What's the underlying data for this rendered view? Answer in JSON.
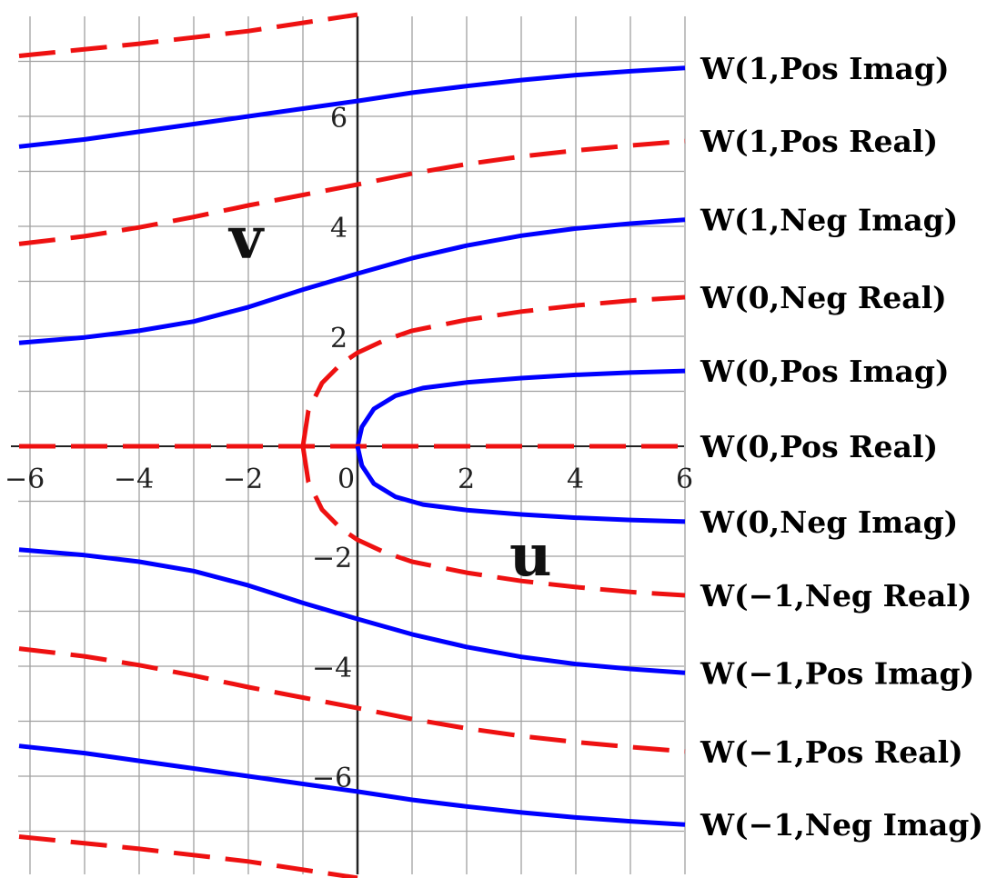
{
  "chart_data": {
    "type": "line",
    "xlabel": "u",
    "ylabel": "v",
    "xlim": [
      -6.2,
      6
    ],
    "ylim": [
      -7.8,
      7.9
    ],
    "grid": true,
    "x_ticks": [
      -6,
      -4,
      -2,
      0,
      2,
      4,
      6
    ],
    "x_tick_labels": [
      "−6",
      "−4",
      "−2",
      "0",
      "2",
      "4",
      "6"
    ],
    "y_ticks": [
      -6,
      -4,
      -2,
      2,
      4,
      6
    ],
    "y_tick_labels": [
      "−6",
      "−4",
      "−2",
      "2",
      "4",
      "6"
    ],
    "colors": {
      "imag": "#0000ff",
      "real": "#ee1111",
      "grid": "#a0a0a0",
      "axis": "#222222"
    },
    "series": [
      {
        "name": "W(1,Pos Imag)",
        "color": "#0000ff",
        "dash": "solid",
        "points": [
          [
            -6.2,
            5.45
          ],
          [
            -5,
            5.58
          ],
          [
            -4,
            5.72
          ],
          [
            -3,
            5.86
          ],
          [
            -2,
            6.0
          ],
          [
            -1,
            6.14
          ],
          [
            0,
            6.28
          ],
          [
            1,
            6.43
          ],
          [
            2,
            6.55
          ],
          [
            3,
            6.66
          ],
          [
            4,
            6.75
          ],
          [
            5,
            6.82
          ],
          [
            6,
            6.88
          ]
        ]
      },
      {
        "name": "W(1,Pos Real)",
        "color": "#ee1111",
        "dash": "dashed",
        "points": [
          [
            -6.2,
            3.68
          ],
          [
            -5,
            3.82
          ],
          [
            -4,
            3.98
          ],
          [
            -3,
            4.17
          ],
          [
            -2,
            4.38
          ],
          [
            -1,
            4.57
          ],
          [
            0,
            4.76
          ],
          [
            1,
            4.96
          ],
          [
            2,
            5.13
          ],
          [
            3,
            5.27
          ],
          [
            4,
            5.38
          ],
          [
            5,
            5.47
          ],
          [
            6,
            5.55
          ]
        ]
      },
      {
        "name": "W(1,Neg Imag)",
        "color": "#0000ff",
        "dash": "solid",
        "points": [
          [
            -6.2,
            1.88
          ],
          [
            -5,
            1.98
          ],
          [
            -4,
            2.1
          ],
          [
            -3,
            2.27
          ],
          [
            -2,
            2.53
          ],
          [
            -1,
            2.85
          ],
          [
            0,
            3.14
          ],
          [
            1,
            3.42
          ],
          [
            2,
            3.65
          ],
          [
            3,
            3.83
          ],
          [
            4,
            3.96
          ],
          [
            5,
            4.05
          ],
          [
            6,
            4.12
          ]
        ]
      },
      {
        "name": "W(0,Neg Real)",
        "color": "#ee1111",
        "dash": "dashed",
        "points": [
          [
            -1,
            0
          ],
          [
            -0.9,
            0.65
          ],
          [
            -0.65,
            1.15
          ],
          [
            -0.3,
            1.5
          ],
          [
            0,
            1.7
          ],
          [
            0.5,
            1.93
          ],
          [
            1,
            2.1
          ],
          [
            2,
            2.3
          ],
          [
            3,
            2.45
          ],
          [
            4,
            2.56
          ],
          [
            5,
            2.65
          ],
          [
            6,
            2.71
          ]
        ]
      },
      {
        "name": "W(0,Pos Imag)",
        "color": "#0000ff",
        "dash": "solid",
        "points": [
          [
            0,
            0
          ],
          [
            0.08,
            0.35
          ],
          [
            0.3,
            0.68
          ],
          [
            0.7,
            0.92
          ],
          [
            1.2,
            1.06
          ],
          [
            2,
            1.16
          ],
          [
            3,
            1.24
          ],
          [
            4,
            1.3
          ],
          [
            5,
            1.34
          ],
          [
            6,
            1.37
          ]
        ]
      },
      {
        "name": "W(0,Pos Real)",
        "color": "#ee1111",
        "dash": "dashed",
        "points": [
          [
            -6.2,
            0
          ],
          [
            6,
            0
          ]
        ]
      },
      {
        "name": "W(0,Neg Imag)",
        "color": "#0000ff",
        "dash": "solid",
        "points": [
          [
            0,
            0
          ],
          [
            0.08,
            -0.35
          ],
          [
            0.3,
            -0.68
          ],
          [
            0.7,
            -0.92
          ],
          [
            1.2,
            -1.06
          ],
          [
            2,
            -1.16
          ],
          [
            3,
            -1.24
          ],
          [
            4,
            -1.3
          ],
          [
            5,
            -1.34
          ],
          [
            6,
            -1.37
          ]
        ]
      },
      {
        "name": "W(−1,Neg Real)",
        "color": "#ee1111",
        "dash": "dashed",
        "points": [
          [
            -1,
            0
          ],
          [
            -0.9,
            -0.65
          ],
          [
            -0.65,
            -1.15
          ],
          [
            -0.3,
            -1.5
          ],
          [
            0,
            -1.7
          ],
          [
            0.5,
            -1.93
          ],
          [
            1,
            -2.1
          ],
          [
            2,
            -2.3
          ],
          [
            3,
            -2.45
          ],
          [
            4,
            -2.56
          ],
          [
            5,
            -2.65
          ],
          [
            6,
            -2.71
          ]
        ]
      },
      {
        "name": "W(−1,Pos Imag)",
        "color": "#0000ff",
        "dash": "solid",
        "points": [
          [
            -6.2,
            -1.88
          ],
          [
            -5,
            -1.98
          ],
          [
            -4,
            -2.1
          ],
          [
            -3,
            -2.27
          ],
          [
            -2,
            -2.53
          ],
          [
            -1,
            -2.85
          ],
          [
            0,
            -3.14
          ],
          [
            1,
            -3.42
          ],
          [
            2,
            -3.65
          ],
          [
            3,
            -3.83
          ],
          [
            4,
            -3.96
          ],
          [
            5,
            -4.05
          ],
          [
            6,
            -4.12
          ]
        ]
      },
      {
        "name": "W(−1,Pos Real)",
        "color": "#ee1111",
        "dash": "dashed",
        "points": [
          [
            -6.2,
            -3.68
          ],
          [
            -5,
            -3.82
          ],
          [
            -4,
            -3.98
          ],
          [
            -3,
            -4.17
          ],
          [
            -2,
            -4.38
          ],
          [
            -1,
            -4.57
          ],
          [
            0,
            -4.76
          ],
          [
            1,
            -4.96
          ],
          [
            2,
            -5.13
          ],
          [
            3,
            -5.27
          ],
          [
            4,
            -5.38
          ],
          [
            5,
            -5.47
          ],
          [
            6,
            -5.55
          ]
        ]
      },
      {
        "name": "W(−1,Neg Imag)",
        "color": "#0000ff",
        "dash": "solid",
        "points": [
          [
            -6.2,
            -5.45
          ],
          [
            -5,
            -5.58
          ],
          [
            -4,
            -5.72
          ],
          [
            -3,
            -5.86
          ],
          [
            -2,
            -6.0
          ],
          [
            -1,
            -6.14
          ],
          [
            0,
            -6.28
          ],
          [
            1,
            -6.43
          ],
          [
            2,
            -6.55
          ],
          [
            3,
            -6.66
          ],
          [
            4,
            -6.75
          ],
          [
            5,
            -6.82
          ],
          [
            6,
            -6.88
          ]
        ]
      },
      {
        "name": "",
        "color": "#ee1111",
        "dash": "dashed",
        "points": [
          [
            -6.2,
            7.1
          ],
          [
            -4,
            7.32
          ],
          [
            -2,
            7.55
          ],
          [
            0,
            7.85
          ]
        ]
      },
      {
        "name": "",
        "color": "#ee1111",
        "dash": "dashed",
        "points": [
          [
            -6.2,
            -7.1
          ],
          [
            -4,
            -7.32
          ],
          [
            -2,
            -7.55
          ],
          [
            0,
            -7.85
          ]
        ]
      }
    ]
  }
}
